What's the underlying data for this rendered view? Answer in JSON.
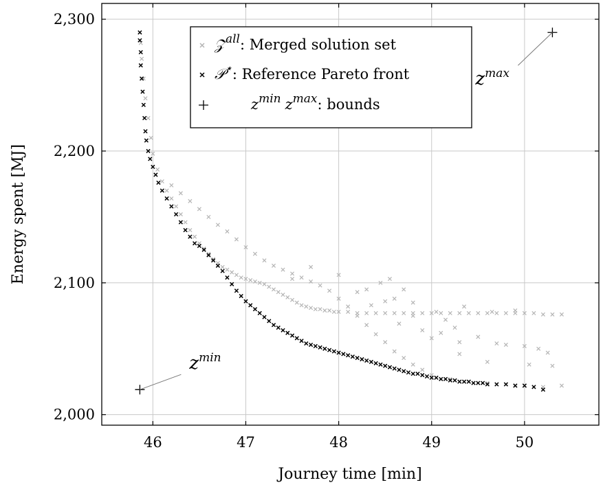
{
  "chart_data": {
    "type": "scatter",
    "xlabel": "Journey time [min]",
    "ylabel": "Energy spent [MJ]",
    "xlim": [
      45.45,
      50.8
    ],
    "ylim": [
      1992,
      2312
    ],
    "xticks": [
      46,
      47,
      48,
      49,
      50
    ],
    "yticks": [
      2000,
      2100,
      2200,
      2300
    ],
    "ytick_labels": [
      "2,000",
      "2,100",
      "2,200",
      "2,300"
    ],
    "grid": true,
    "legend_position": "top-center",
    "legend": [
      {
        "symbol": "×",
        "color": "#b4b4b4",
        "math": "𝒵",
        "sup": "all",
        "text": ": Merged solution set"
      },
      {
        "symbol": "×",
        "color": "#000000",
        "math": "𝒫",
        "sup": "⋆",
        "text": ": Reference Pareto front"
      },
      {
        "symbol": "+",
        "color": "#000000",
        "math": "z",
        "sup": "min",
        "math2": "z",
        "sup2": "max",
        "text": ": bounds"
      }
    ],
    "annotations": [
      {
        "base": "z",
        "sup": "min",
        "point": [
          45.86,
          2019
        ]
      },
      {
        "base": "z",
        "sup": "max",
        "point": [
          50.3,
          2290
        ]
      }
    ],
    "series": [
      {
        "marker": "cross",
        "color": "#b4b4b4",
        "x": [
          45.86,
          45.87,
          45.88,
          45.9,
          45.92,
          45.95,
          45.98,
          46.0,
          46.05,
          46.1,
          46.15,
          46.2,
          46.25,
          46.3,
          46.35,
          46.4,
          46.45,
          46.5,
          46.55,
          46.6,
          46.65,
          46.7,
          46.75,
          46.8,
          46.85,
          46.9,
          46.95,
          47.0,
          47.05,
          47.1,
          47.15,
          47.2,
          47.25,
          47.3,
          47.35,
          47.4,
          47.45,
          47.5,
          47.55,
          47.6,
          47.65,
          47.7,
          47.75,
          47.8,
          47.85,
          47.9,
          47.95,
          48.0,
          48.1,
          48.2,
          48.3,
          48.4,
          48.5,
          48.6,
          48.7,
          48.8,
          48.9,
          49.0,
          49.1,
          49.2,
          49.3,
          49.4,
          49.5,
          49.6,
          49.7,
          49.8,
          49.9,
          50.0,
          50.1,
          50.2,
          50.3,
          50.4,
          46.2,
          46.3,
          46.4,
          46.5,
          46.6,
          46.7,
          46.8,
          46.9,
          47.0,
          47.1,
          47.2,
          47.3,
          47.4,
          47.5,
          47.6,
          47.7,
          47.8,
          47.9,
          48.0,
          48.1,
          48.2,
          48.3,
          48.4,
          48.5,
          48.6,
          48.7,
          48.8,
          48.9,
          49.0,
          49.2,
          49.4,
          49.6,
          49.8,
          50.0,
          50.2,
          50.4,
          48.3,
          48.45,
          48.55,
          48.6,
          48.65,
          48.8,
          48.9,
          49.05,
          49.15,
          49.25,
          49.35,
          49.5,
          49.65,
          49.7,
          49.8,
          49.9,
          50.0,
          50.15,
          50.25,
          48.35,
          48.7,
          49.0,
          49.3,
          49.6,
          50.05,
          50.3,
          47.5,
          47.7,
          48.0,
          48.2,
          48.5,
          48.8,
          49.1,
          49.3
        ],
        "y": [
          2290,
          2282,
          2270,
          2255,
          2240,
          2225,
          2210,
          2198,
          2186,
          2177,
          2170,
          2164,
          2158,
          2152,
          2146,
          2140,
          2135,
          2130,
          2126,
          2122,
          2118,
          2115,
          2112,
          2110,
          2108,
          2106,
          2104,
          2103,
          2102,
          2101,
          2100,
          2099,
          2097,
          2095,
          2093,
          2091,
          2089,
          2087,
          2085,
          2083,
          2082,
          2081,
          2080,
          2080,
          2079,
          2079,
          2078,
          2078,
          2078,
          2077,
          2077,
          2077,
          2077,
          2077,
          2077,
          2077,
          2077,
          2077,
          2077,
          2077,
          2077,
          2077,
          2077,
          2077,
          2077,
          2077,
          2077,
          2077,
          2077,
          2076,
          2076,
          2076,
          2174,
          2168,
          2162,
          2156,
          2150,
          2144,
          2139,
          2133,
          2127,
          2122,
          2117,
          2113,
          2110,
          2107,
          2104,
          2101,
          2098,
          2094,
          2088,
          2082,
          2075,
          2068,
          2061,
          2055,
          2048,
          2043,
          2038,
          2034,
          2030,
          2027,
          2025,
          2024,
          2023,
          2022,
          2021,
          2022,
          2095,
          2100,
          2103,
          2088,
          2069,
          2085,
          2064,
          2078,
          2072,
          2066,
          2082,
          2059,
          2078,
          2054,
          2053,
          2079,
          2052,
          2050,
          2047,
          2083,
          2095,
          2058,
          2046,
          2040,
          2038,
          2037,
          2103,
          2112,
          2106,
          2093,
          2086,
          2075,
          2062,
          2055
        ]
      },
      {
        "marker": "cross",
        "color": "#000000",
        "x": [
          45.86,
          45.86,
          45.87,
          45.87,
          45.88,
          45.89,
          45.9,
          45.91,
          45.92,
          45.93,
          45.95,
          45.97,
          46.0,
          46.03,
          46.06,
          46.1,
          46.15,
          46.2,
          46.25,
          46.3,
          46.35,
          46.4,
          46.45,
          46.5,
          46.55,
          46.6,
          46.65,
          46.7,
          46.75,
          46.8,
          46.85,
          46.9,
          46.95,
          47.0,
          47.05,
          47.1,
          47.15,
          47.2,
          47.25,
          47.3,
          47.35,
          47.4,
          47.45,
          47.5,
          47.55,
          47.6,
          47.65,
          47.7,
          47.75,
          47.8,
          47.85,
          47.9,
          47.95,
          48.0,
          48.05,
          48.1,
          48.15,
          48.2,
          48.25,
          48.3,
          48.35,
          48.4,
          48.45,
          48.5,
          48.55,
          48.6,
          48.65,
          48.7,
          48.75,
          48.8,
          48.85,
          48.9,
          48.95,
          49.0,
          49.05,
          49.1,
          49.15,
          49.2,
          49.25,
          49.3,
          49.35,
          49.4,
          49.45,
          49.5,
          49.55,
          49.6,
          49.7,
          49.8,
          49.9,
          50.0,
          50.1,
          50.2
        ],
        "y": [
          2290,
          2284,
          2275,
          2265,
          2255,
          2245,
          2235,
          2225,
          2215,
          2208,
          2200,
          2194,
          2188,
          2182,
          2176,
          2170,
          2164,
          2158,
          2152,
          2146,
          2140,
          2135,
          2130,
          2128,
          2125,
          2121,
          2117,
          2113,
          2109,
          2104,
          2099,
          2094,
          2090,
          2086,
          2083,
          2080,
          2077,
          2074,
          2071,
          2068,
          2066,
          2064,
          2062,
          2060,
          2058,
          2056,
          2054,
          2053,
          2052,
          2051,
          2050,
          2049,
          2048,
          2047,
          2046,
          2045,
          2044,
          2043,
          2042,
          2041,
          2040,
          2039,
          2038,
          2037,
          2036,
          2035,
          2034,
          2033,
          2032,
          2031,
          2031,
          2030,
          2029,
          2028,
          2028,
          2027,
          2027,
          2026,
          2026,
          2025,
          2025,
          2025,
          2024,
          2024,
          2024,
          2023,
          2023,
          2023,
          2022,
          2022,
          2021,
          2019
        ]
      },
      {
        "marker": "plus",
        "color": "#000000",
        "x": [
          45.86,
          50.3
        ],
        "y": [
          2019,
          2290
        ]
      }
    ]
  }
}
